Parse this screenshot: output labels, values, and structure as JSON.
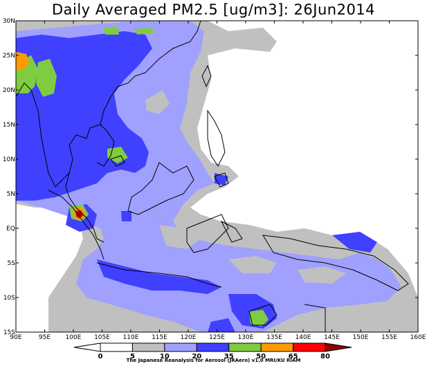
{
  "title": "Daily Averaged PM2.5 [ug/m3]: 26Jun2014",
  "map": {
    "lon_range": [
      90,
      160
    ],
    "lat_range": [
      -15,
      30
    ],
    "lon_ticks": [
      "90E",
      "95E",
      "100E",
      "105E",
      "110E",
      "115E",
      "120E",
      "125E",
      "130E",
      "135E",
      "140E",
      "145E",
      "150E",
      "155E",
      "160E"
    ],
    "lat_ticks": [
      "30N",
      "25N",
      "20N",
      "15N",
      "10N",
      "5N",
      "EQ",
      "5S",
      "10S",
      "15S"
    ]
  },
  "colorbar": {
    "levels": [
      "0",
      "5",
      "10",
      "20",
      "35",
      "50",
      "65",
      "80"
    ],
    "colors": [
      "#ffffff",
      "#ffffff",
      "#c0c0c0",
      "#a0a0ff",
      "#4040ff",
      "#80cc40",
      "#ff9900",
      "#ff0000",
      "#8b0000"
    ]
  },
  "credit": "The Japanese Reanalysis for Aerosol (JRAero) v1.0 MRI/KU RIAM"
}
